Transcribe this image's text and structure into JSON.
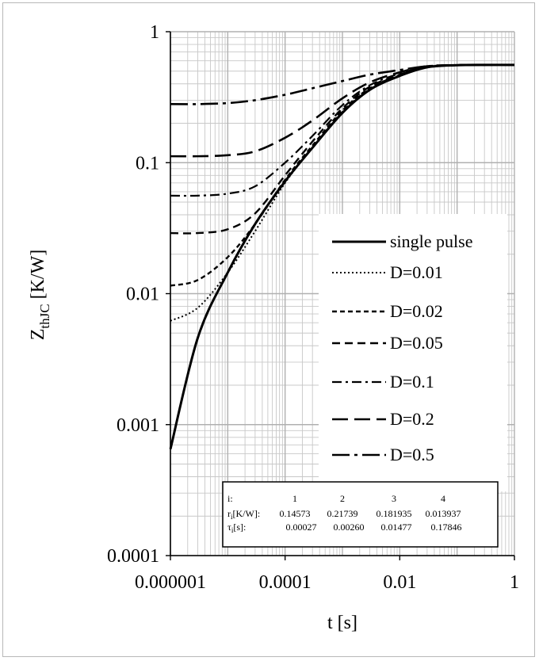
{
  "chart_data": {
    "type": "line",
    "scale": {
      "x": "log",
      "y": "log"
    },
    "xlim": [
      1e-06,
      1
    ],
    "ylim": [
      0.0001,
      1
    ],
    "xlabel": "t [s]",
    "ylabel_main": "Z",
    "ylabel_sub": "thJC",
    "ylabel_unit": " [K/W]",
    "x_ticks": [
      {
        "value": 1e-06,
        "label": "0.000001"
      },
      {
        "value": 0.0001,
        "label": "0.0001"
      },
      {
        "value": 0.01,
        "label": "0.01"
      },
      {
        "value": 1,
        "label": "1"
      }
    ],
    "y_ticks": [
      {
        "value": 0.0001,
        "label": "0.0001"
      },
      {
        "value": 0.001,
        "label": "0.001"
      },
      {
        "value": 0.01,
        "label": "0.01"
      },
      {
        "value": 0.1,
        "label": "0.1"
      },
      {
        "value": 1,
        "label": "1"
      }
    ],
    "grid": true,
    "legend_position": "right",
    "series": [
      {
        "name": "single pulse",
        "duty": 0,
        "style": "solid",
        "points": [
          [
            1e-06,
            0.00065
          ],
          [
            3e-06,
            0.0046
          ],
          [
            1e-05,
            0.0145
          ],
          [
            3e-05,
            0.034
          ],
          [
            0.0001,
            0.072
          ],
          [
            0.0003,
            0.13
          ],
          [
            0.001,
            0.24
          ],
          [
            0.003,
            0.36
          ],
          [
            0.01,
            0.46
          ],
          [
            0.03,
            0.535
          ],
          [
            0.1,
            0.555
          ],
          [
            0.3,
            0.558
          ],
          [
            1,
            0.558
          ]
        ]
      },
      {
        "name": "D=0.01",
        "duty": 0.01,
        "style": "dot",
        "points": [
          [
            1e-06,
            0.0062
          ],
          [
            3e-06,
            0.0078
          ],
          [
            1e-05,
            0.0145
          ],
          [
            3e-05,
            0.03
          ],
          [
            0.0001,
            0.07
          ],
          [
            0.0003,
            0.13
          ],
          [
            0.001,
            0.245
          ],
          [
            0.003,
            0.365
          ],
          [
            0.01,
            0.46
          ],
          [
            0.03,
            0.535
          ],
          [
            0.1,
            0.555
          ],
          [
            0.3,
            0.558
          ],
          [
            1,
            0.558
          ]
        ]
      },
      {
        "name": "D=0.02",
        "duty": 0.02,
        "style": "shortdash",
        "points": [
          [
            1e-06,
            0.0115
          ],
          [
            3e-06,
            0.0127
          ],
          [
            1e-05,
            0.019
          ],
          [
            3e-05,
            0.034
          ],
          [
            0.0001,
            0.074
          ],
          [
            0.0003,
            0.135
          ],
          [
            0.001,
            0.25
          ],
          [
            0.003,
            0.37
          ],
          [
            0.01,
            0.465
          ],
          [
            0.03,
            0.535
          ],
          [
            0.1,
            0.555
          ],
          [
            0.3,
            0.558
          ],
          [
            1,
            0.558
          ]
        ]
      },
      {
        "name": "D=0.05",
        "duty": 0.05,
        "style": "dash",
        "points": [
          [
            1e-06,
            0.029
          ],
          [
            3e-06,
            0.029
          ],
          [
            1e-05,
            0.031
          ],
          [
            3e-05,
            0.041
          ],
          [
            0.0001,
            0.08
          ],
          [
            0.0003,
            0.145
          ],
          [
            0.001,
            0.26
          ],
          [
            0.003,
            0.38
          ],
          [
            0.01,
            0.47
          ],
          [
            0.03,
            0.54
          ],
          [
            0.1,
            0.556
          ],
          [
            0.3,
            0.558
          ],
          [
            1,
            0.558
          ]
        ]
      },
      {
        "name": "D=0.1",
        "duty": 0.1,
        "style": "dashdot",
        "points": [
          [
            1e-06,
            0.056
          ],
          [
            3e-06,
            0.056
          ],
          [
            1e-05,
            0.058
          ],
          [
            3e-05,
            0.066
          ],
          [
            0.0001,
            0.1
          ],
          [
            0.0003,
            0.16
          ],
          [
            0.001,
            0.275
          ],
          [
            0.003,
            0.39
          ],
          [
            0.01,
            0.48
          ],
          [
            0.03,
            0.54
          ],
          [
            0.1,
            0.556
          ],
          [
            0.3,
            0.558
          ],
          [
            1,
            0.558
          ]
        ]
      },
      {
        "name": "D=0.2",
        "duty": 0.2,
        "style": "longdash",
        "points": [
          [
            1e-06,
            0.112
          ],
          [
            3e-06,
            0.112
          ],
          [
            1e-05,
            0.114
          ],
          [
            3e-05,
            0.122
          ],
          [
            0.0001,
            0.155
          ],
          [
            0.0003,
            0.21
          ],
          [
            0.001,
            0.31
          ],
          [
            0.003,
            0.41
          ],
          [
            0.01,
            0.49
          ],
          [
            0.03,
            0.545
          ],
          [
            0.1,
            0.556
          ],
          [
            0.3,
            0.558
          ],
          [
            1,
            0.558
          ]
        ]
      },
      {
        "name": "D=0.5",
        "duty": 0.5,
        "style": "longdashdot",
        "points": [
          [
            1e-06,
            0.28
          ],
          [
            3e-06,
            0.28
          ],
          [
            1e-05,
            0.285
          ],
          [
            3e-05,
            0.3
          ],
          [
            0.0001,
            0.33
          ],
          [
            0.0003,
            0.37
          ],
          [
            0.001,
            0.42
          ],
          [
            0.003,
            0.47
          ],
          [
            0.01,
            0.51
          ],
          [
            0.03,
            0.545
          ],
          [
            0.1,
            0.556
          ],
          [
            0.3,
            0.558
          ],
          [
            1,
            0.558
          ]
        ]
      }
    ],
    "table": {
      "rows": [
        {
          "label": "i:",
          "values": [
            "1",
            "2",
            "3",
            "4"
          ]
        },
        {
          "label_main": "r",
          "label_sub": "i",
          "label_rest": "[K/W]:",
          "values": [
            "0.14573",
            "0.21739",
            "0.181935",
            "0.013937"
          ]
        },
        {
          "label_main": "τ",
          "label_sub": "i",
          "label_rest": "[s]:",
          "values": [
            "0.00027",
            "0.00260",
            "0.01477",
            "0.17846"
          ]
        }
      ]
    }
  }
}
